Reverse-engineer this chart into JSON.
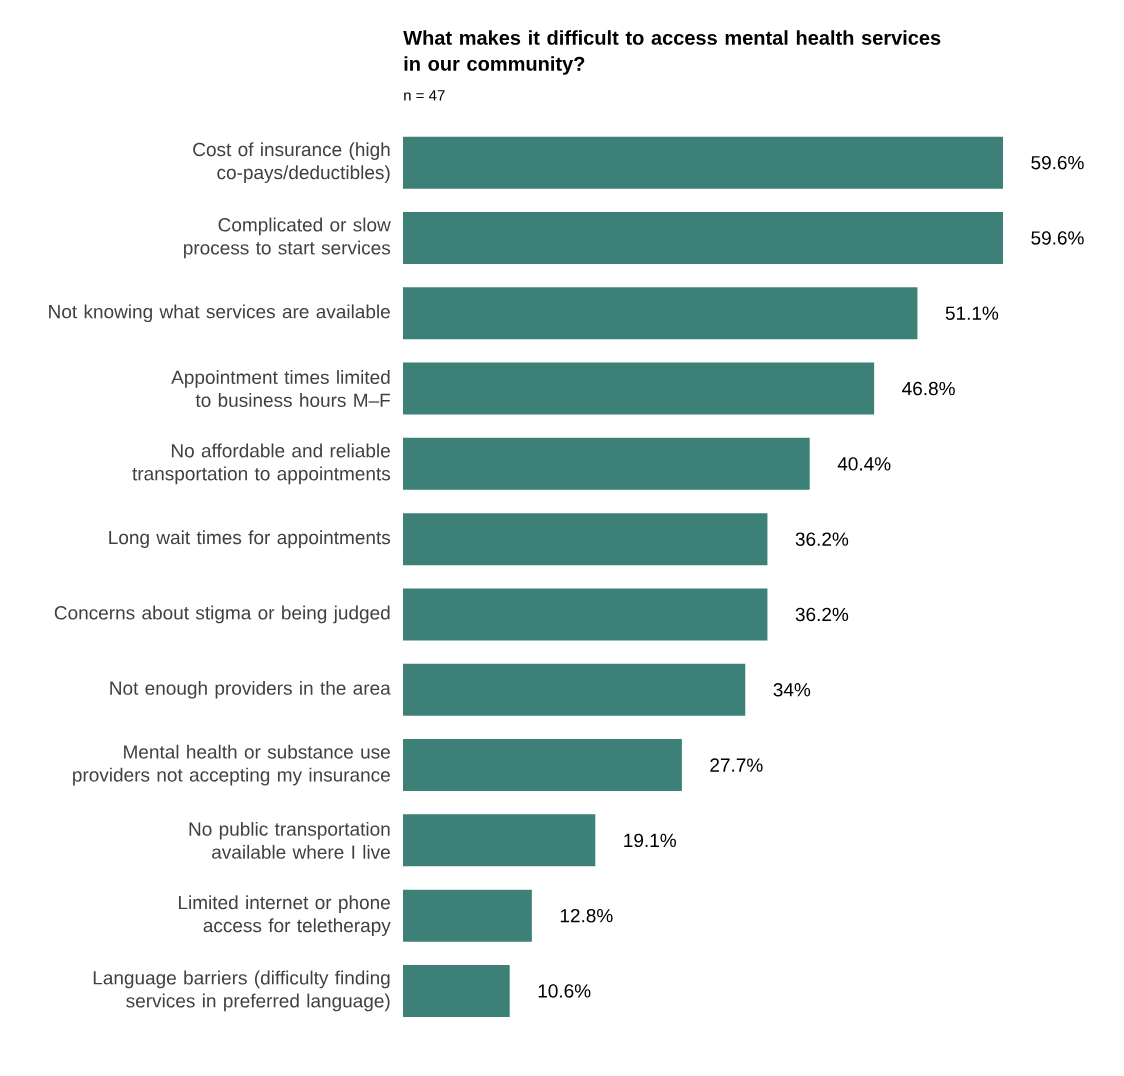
{
  "chart_data": {
    "type": "bar",
    "orientation": "horizontal",
    "title": "What makes it difficult to access mental health services in our community?",
    "subtitle": "n = 47",
    "color": "#3d8078",
    "categories": [
      "Cost of insurance (high co-pays/deductibles)",
      "Complicated or slow process to start services",
      "Not knowing what services are available",
      "Appointment times limited to business hours M–F",
      "No affordable and reliable transportation to appointments",
      "Long wait times for appointments",
      "Concerns about stigma or being judged",
      "Not enough providers in the area",
      "Mental health or substance use providers not accepting my insurance",
      "No public transportation available where I live",
      "Limited internet or phone access for teletherapy",
      "Language barriers (difficulty finding services in preferred language)"
    ],
    "values": [
      59.6,
      59.6,
      51.1,
      46.8,
      40.4,
      36.2,
      36.2,
      34,
      27.7,
      19.1,
      12.8,
      10.6
    ],
    "value_labels": [
      "59.6%",
      "59.6%",
      "51.1%",
      "46.8%",
      "40.4%",
      "36.2%",
      "36.2%",
      "34%",
      "27.7%",
      "19.1%",
      "12.8%",
      "10.6%"
    ]
  }
}
